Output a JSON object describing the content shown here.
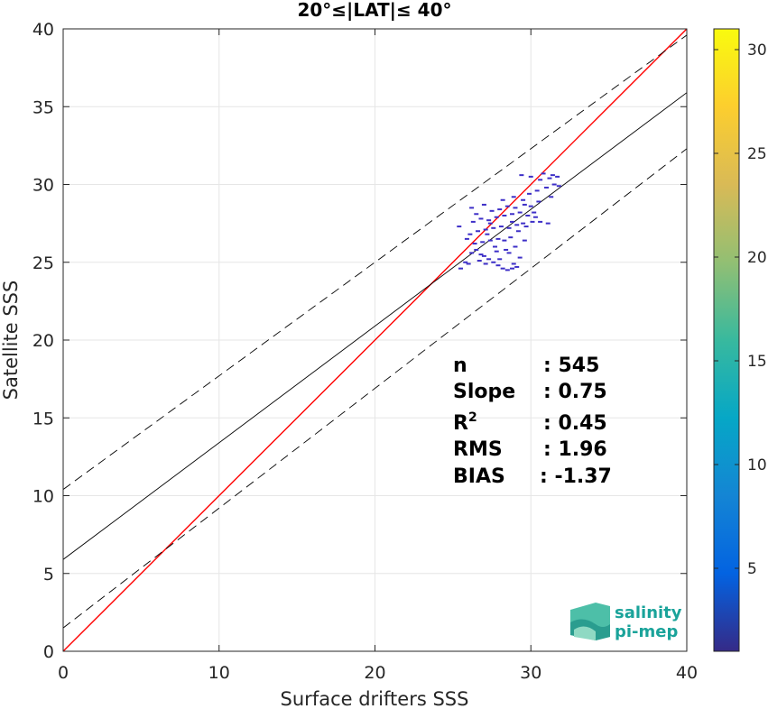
{
  "chart_data": {
    "type": "scatter",
    "title": "20°≤|LAT|≤ 40°",
    "xlabel": "Surface drifters SSS",
    "ylabel": "Satellite SSS",
    "xlim": [
      0,
      40
    ],
    "ylim": [
      0,
      40
    ],
    "xticks": [
      0,
      10,
      20,
      30,
      40
    ],
    "yticks": [
      0,
      5,
      10,
      15,
      20,
      25,
      30,
      35,
      40
    ],
    "grid": true,
    "colorbar": {
      "min": 1,
      "max": 31,
      "ticks": [
        5,
        10,
        15,
        20,
        25,
        30
      ],
      "colormap": "parula"
    },
    "point_color": "#3d2fc7",
    "lines": [
      {
        "name": "identity",
        "slope": 1.0,
        "intercept": 0.0,
        "color": "#ff0000",
        "style": "solid"
      },
      {
        "name": "fit",
        "slope": 0.75,
        "intercept": 5.9,
        "color": "#000000",
        "style": "solid"
      },
      {
        "name": "upper",
        "slope": 0.73,
        "intercept": 10.4,
        "color": "#000000",
        "style": "dashed"
      },
      {
        "name": "lower",
        "slope": 0.77,
        "intercept": 1.5,
        "color": "#000000",
        "style": "dashed"
      }
    ],
    "stats": [
      {
        "label": "n",
        "value": ": 545"
      },
      {
        "label": "Slope",
        "value": ": 0.75"
      },
      {
        "label": "R2",
        "value": ": 0.45"
      },
      {
        "label": "RMS",
        "value": ": 1.96"
      },
      {
        "label": "BIAS",
        "value": ": -1.37"
      }
    ],
    "points": [
      [
        26.2,
        25.6
      ],
      [
        26.5,
        25.8
      ],
      [
        26.8,
        25.5
      ],
      [
        27.0,
        25.4
      ],
      [
        27.3,
        25.2
      ],
      [
        27.6,
        25.0
      ],
      [
        27.9,
        24.8
      ],
      [
        28.2,
        24.6
      ],
      [
        28.5,
        24.5
      ],
      [
        28.8,
        24.6
      ],
      [
        29.1,
        24.7
      ],
      [
        26.4,
        26.2
      ],
      [
        26.9,
        26.3
      ],
      [
        27.4,
        26.4
      ],
      [
        27.9,
        26.5
      ],
      [
        28.3,
        26.4
      ],
      [
        28.7,
        26.6
      ],
      [
        26.1,
        26.8
      ],
      [
        26.6,
        27.0
      ],
      [
        27.1,
        27.1
      ],
      [
        27.6,
        27.2
      ],
      [
        28.1,
        27.3
      ],
      [
        28.6,
        27.2
      ],
      [
        29.1,
        27.4
      ],
      [
        29.5,
        27.5
      ],
      [
        30.1,
        27.6
      ],
      [
        30.6,
        27.6
      ],
      [
        31.1,
        27.5
      ],
      [
        26.3,
        27.6
      ],
      [
        26.8,
        27.8
      ],
      [
        27.3,
        27.7
      ],
      [
        27.8,
        27.9
      ],
      [
        28.3,
        28.0
      ],
      [
        28.8,
        28.1
      ],
      [
        29.3,
        28.2
      ],
      [
        29.8,
        28.0
      ],
      [
        30.3,
        27.9
      ],
      [
        27.5,
        28.3
      ],
      [
        28.0,
        28.4
      ],
      [
        28.5,
        28.6
      ],
      [
        29.0,
        28.5
      ],
      [
        29.6,
        28.7
      ],
      [
        30.0,
        28.6
      ],
      [
        28.2,
        29.0
      ],
      [
        28.9,
        29.2
      ],
      [
        29.5,
        29.0
      ],
      [
        30.4,
        29.6
      ],
      [
        31.0,
        29.8
      ],
      [
        31.5,
        30.0
      ],
      [
        30.6,
        30.3
      ],
      [
        31.2,
        30.4
      ],
      [
        31.7,
        30.5
      ],
      [
        29.4,
        30.6
      ],
      [
        30.0,
        30.5
      ],
      [
        30.8,
        30.7
      ],
      [
        31.4,
        30.6
      ],
      [
        27.2,
        26.8
      ],
      [
        27.7,
        26.0
      ],
      [
        28.4,
        25.8
      ],
      [
        29.0,
        26.0
      ],
      [
        29.3,
        25.3
      ],
      [
        25.8,
        25.0
      ],
      [
        25.5,
        24.6
      ],
      [
        26.0,
        24.9
      ],
      [
        27.1,
        24.9
      ],
      [
        28.0,
        25.2
      ],
      [
        25.9,
        26.5
      ],
      [
        26.7,
        25.1
      ],
      [
        28.6,
        25.6
      ],
      [
        29.7,
        27.3
      ],
      [
        30.2,
        28.2
      ],
      [
        29.9,
        29.4
      ],
      [
        31.3,
        29.2
      ],
      [
        27.4,
        27.5
      ],
      [
        26.5,
        28.1
      ],
      [
        25.4,
        27.3
      ],
      [
        26.2,
        28.5
      ],
      [
        27.0,
        28.7
      ],
      [
        28.8,
        27.6
      ],
      [
        29.2,
        27.0
      ],
      [
        27.8,
        25.7
      ],
      [
        28.9,
        24.9
      ],
      [
        30.5,
        28.9
      ],
      [
        31.8,
        29.9
      ],
      [
        29.6,
        26.4
      ]
    ]
  },
  "logo": {
    "line1": "salinity",
    "line2": "pi-mep"
  }
}
